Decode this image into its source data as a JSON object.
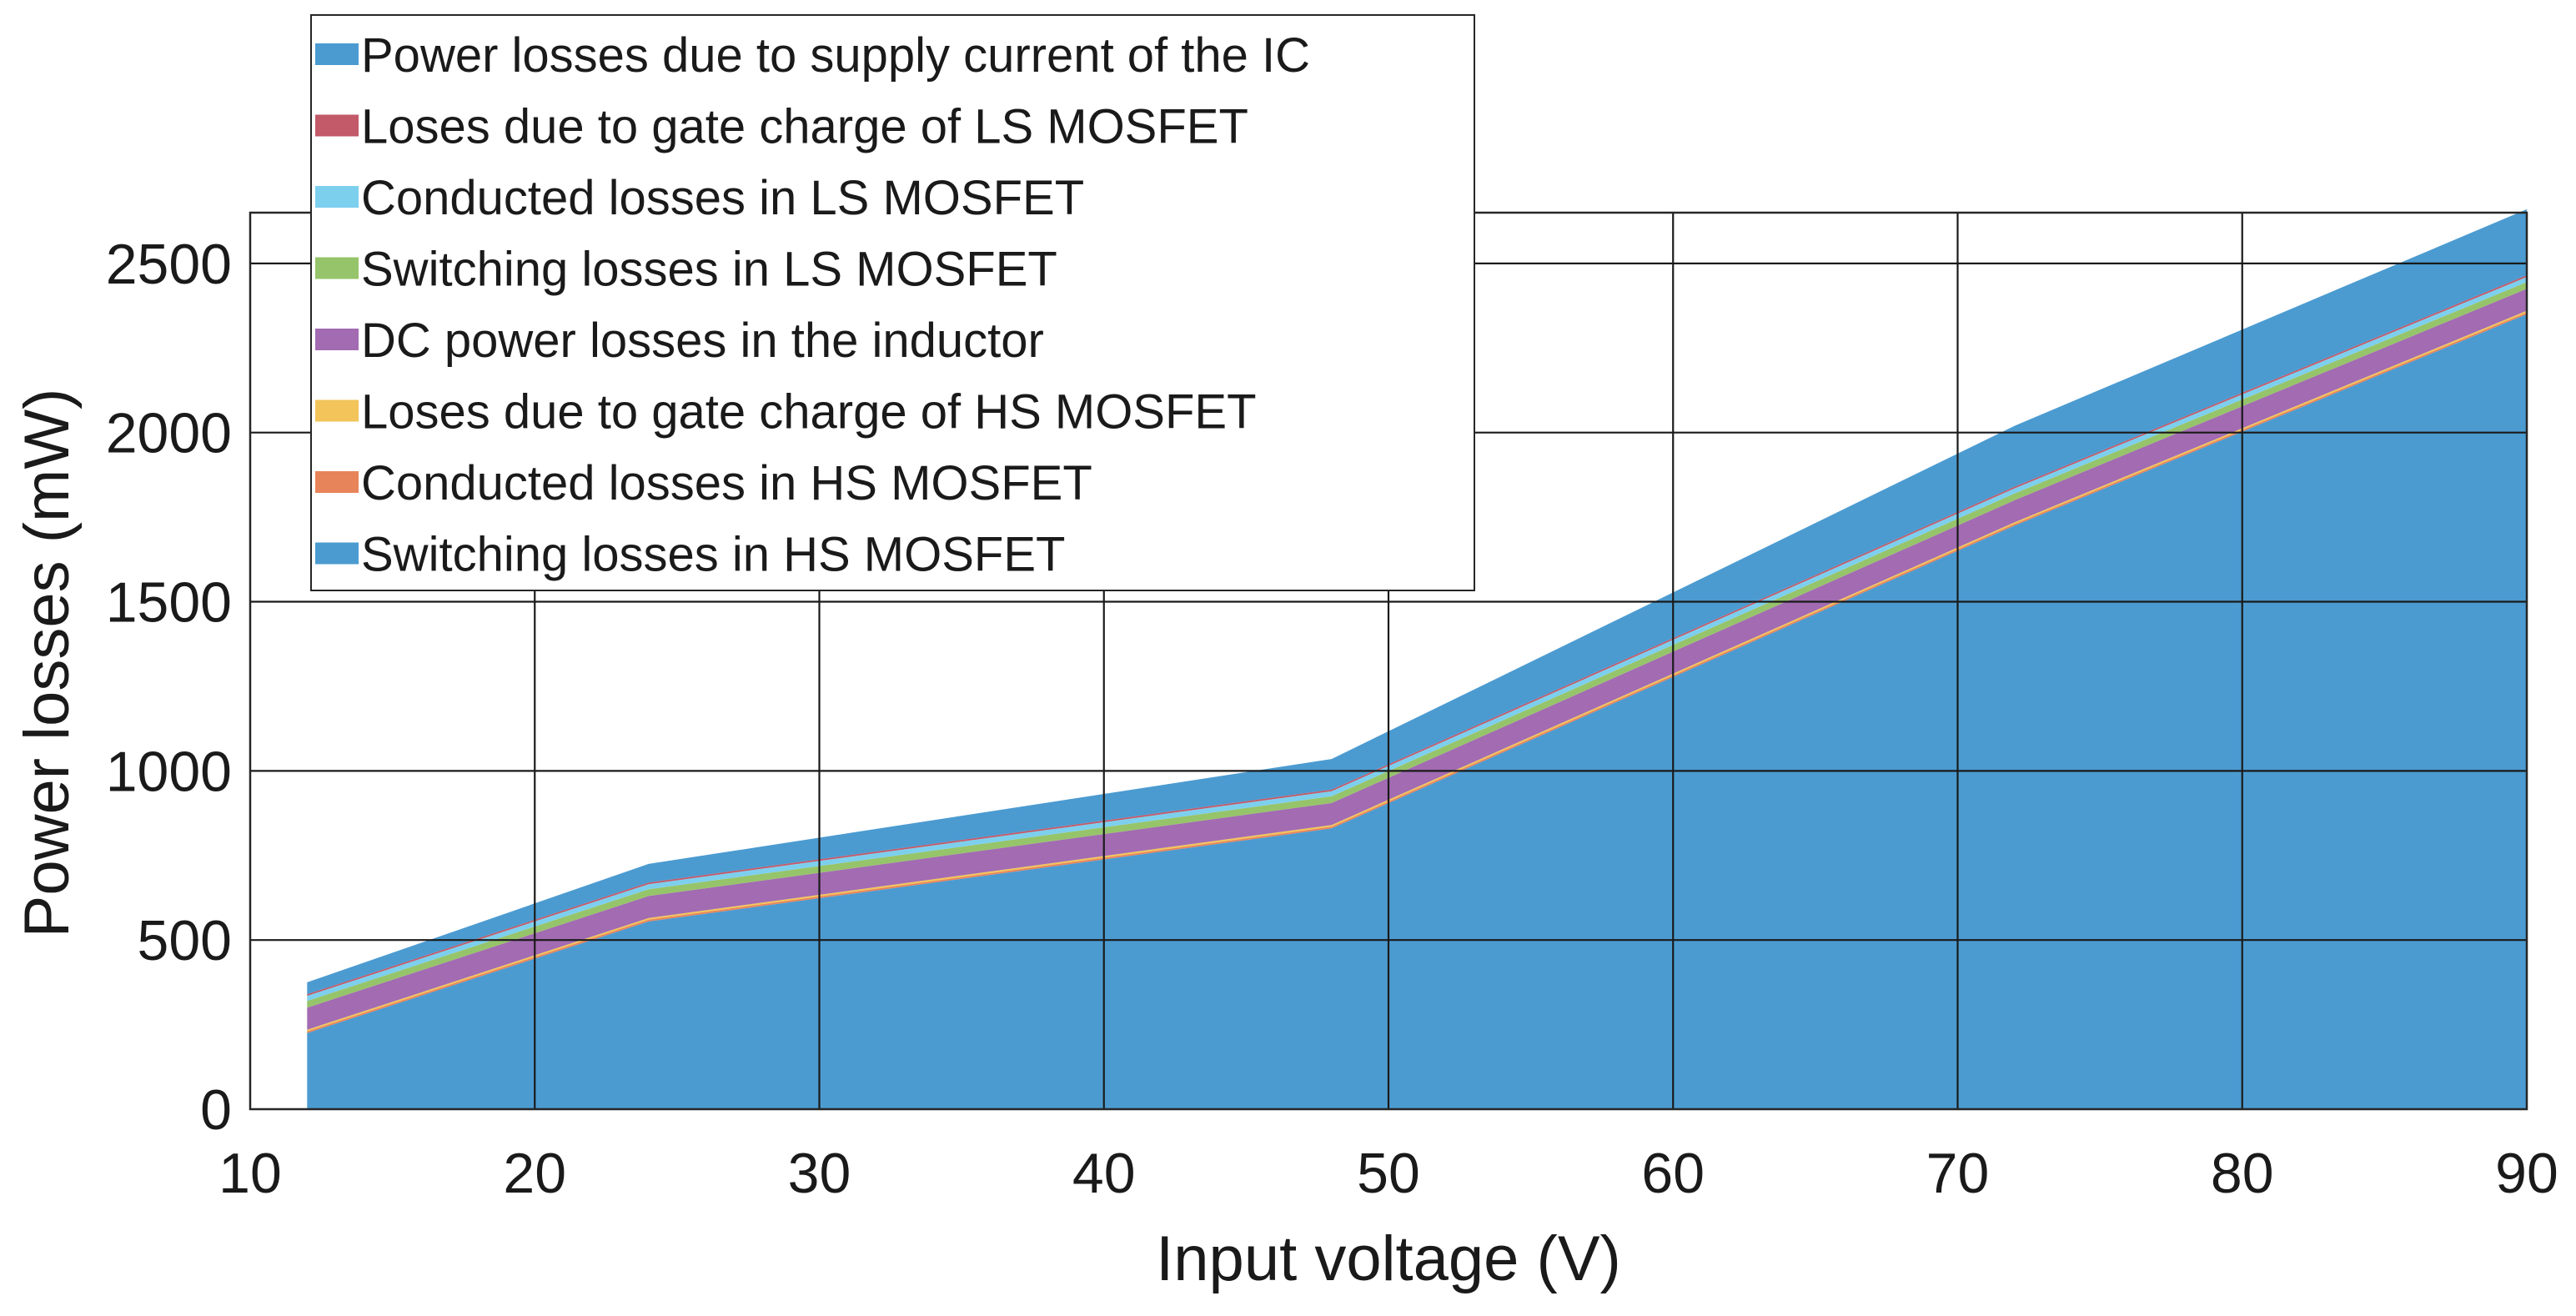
{
  "chart_data": {
    "type": "area",
    "stacked": true,
    "xlabel": "Input voltage (V)",
    "ylabel": "Power losses (mW)",
    "xlim": [
      10,
      90
    ],
    "ylim": [
      0,
      2650
    ],
    "xticks": [
      10,
      20,
      30,
      40,
      50,
      60,
      70,
      80,
      90
    ],
    "yticks": [
      0,
      500,
      1000,
      1500,
      2000,
      2500
    ],
    "grid": true,
    "legend_position": "top-left",
    "x": [
      12,
      24,
      48,
      72,
      90
    ],
    "series": [
      {
        "name": "Switching losses in HS MOSFET",
        "color": "#4b9bd1",
        "values": [
          225,
          555,
          830,
          1725,
          2350
        ]
      },
      {
        "name": "Conducted losses in HS MOSFET",
        "color": "#e8845a",
        "values": [
          5,
          5,
          5,
          5,
          5
        ]
      },
      {
        "name": "Loses due to gate charge of HS MOSFET",
        "color": "#f2c45a",
        "values": [
          5,
          5,
          5,
          5,
          5
        ]
      },
      {
        "name": "DC power losses in the inductor",
        "color": "#a26bb2",
        "values": [
          65,
          65,
          65,
          65,
          65
        ]
      },
      {
        "name": "Switching losses in LS MOSFET",
        "color": "#96c46a",
        "values": [
          20,
          20,
          20,
          20,
          20
        ]
      },
      {
        "name": "Conducted losses in LS MOSFET",
        "color": "#7dcfee",
        "values": [
          15,
          15,
          15,
          15,
          15
        ]
      },
      {
        "name": "Loses due to gate charge of LS MOSFET",
        "color": "#c25a6a",
        "values": [
          5,
          5,
          5,
          5,
          5
        ]
      },
      {
        "name": "Power losses due to supply current of the IC",
        "color": "#4b9bd1",
        "values": [
          35,
          55,
          90,
          180,
          195
        ]
      }
    ]
  }
}
